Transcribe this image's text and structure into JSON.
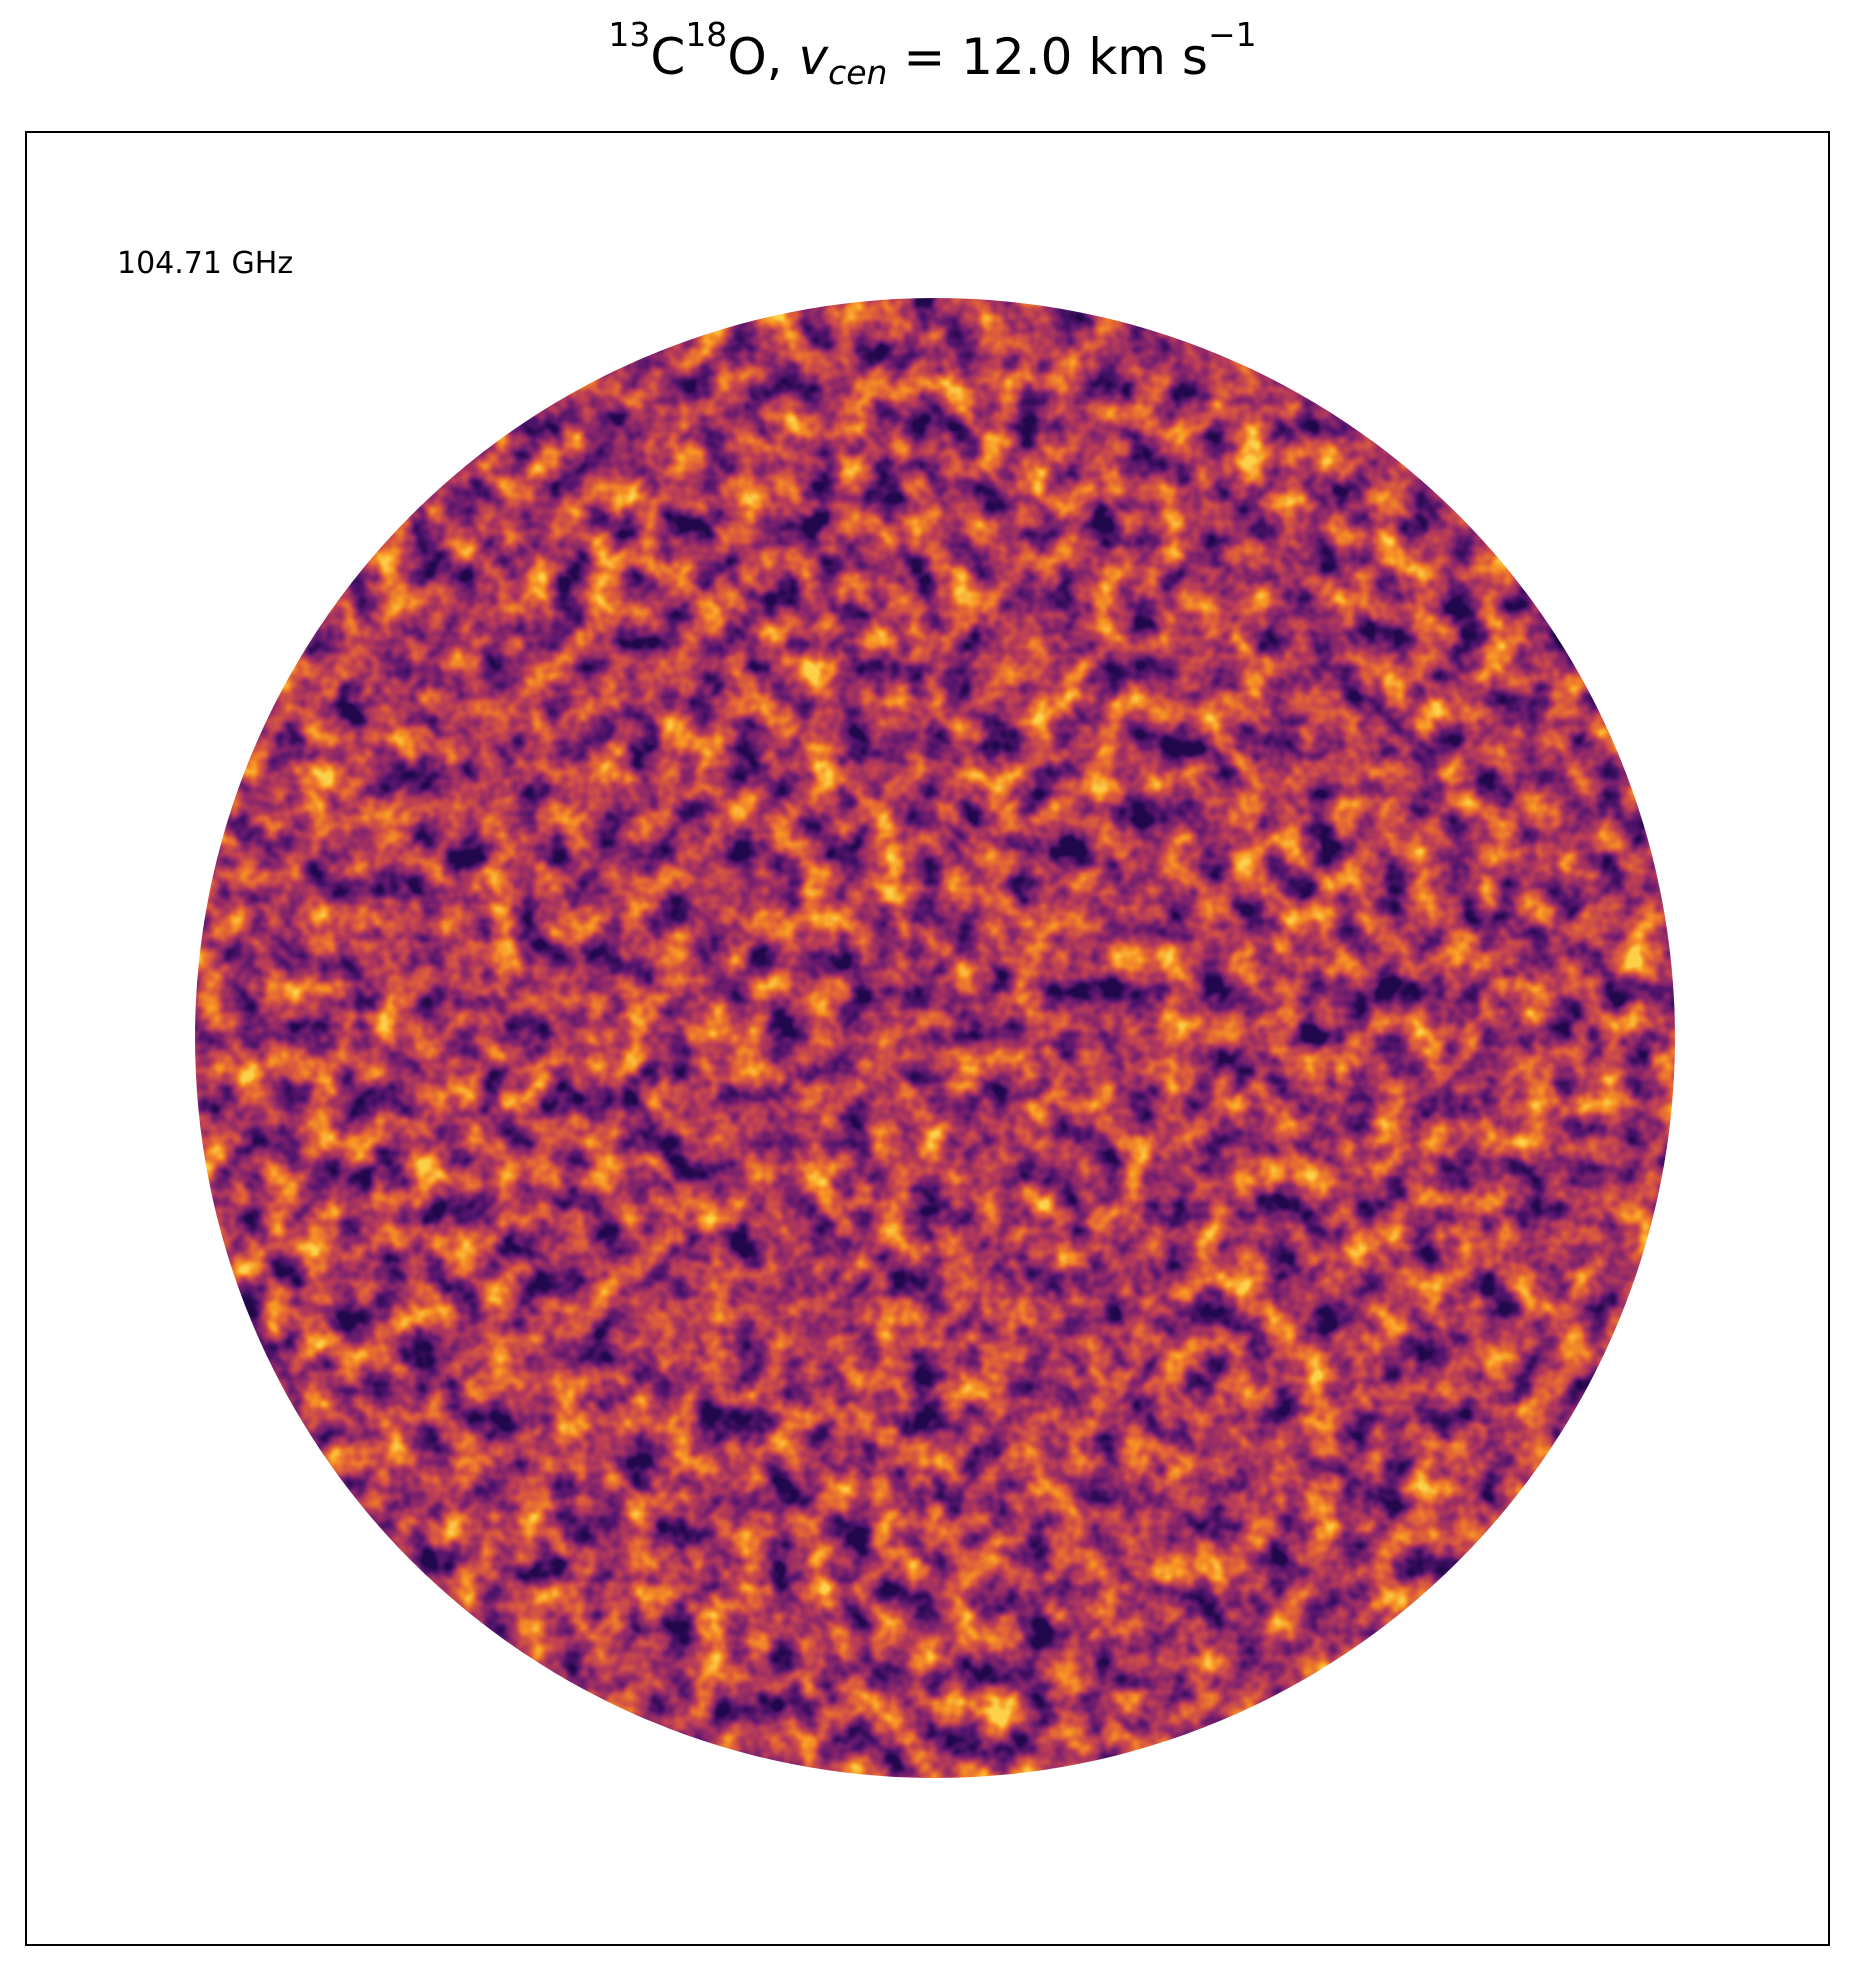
{
  "title": {
    "iso1": "13",
    "c": "C",
    "iso2": "18",
    "o_sep": "O, ",
    "v": "v",
    "sub": "cen",
    "rest": " =  12.0 km s",
    "exp": "−1"
  },
  "annotation": {
    "frequency": "104.71 GHz"
  },
  "map": {
    "colormap": "inferno",
    "colors": [
      "#2a0a50",
      "#5a1a6e",
      "#8a2a6a",
      "#b83d55",
      "#e0653a",
      "#f59a2e",
      "#fcd14a"
    ],
    "shape": "circle"
  }
}
